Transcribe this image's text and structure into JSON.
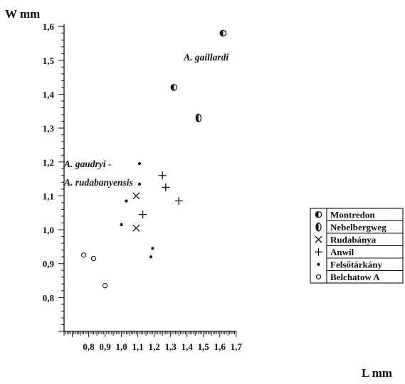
{
  "chart_data": {
    "type": "scatter",
    "xlabel": "L mm",
    "ylabel": "W mm",
    "xlim": [
      0.65,
      1.7
    ],
    "ylim": [
      0.7,
      1.6
    ],
    "x_ticks": [
      "0,8",
      "0,9",
      "1,0",
      "1,1",
      "1,2",
      "1,3",
      "1,4",
      "1,5",
      "1,6",
      "1,7"
    ],
    "y_ticks": [
      "0,8",
      "0,9",
      "1,0",
      "1,1",
      "1,2",
      "1,3",
      "1,4",
      "1,5",
      "1,6"
    ],
    "grid": false,
    "legend_position": "right",
    "annotations": [
      {
        "text": "A. gaillardi",
        "x": 1.38,
        "y": 1.5
      },
      {
        "text": "A. gaudryi -",
        "x": 0.65,
        "y": 1.185
      },
      {
        "text": "A. rudabanyensis",
        "x": 0.65,
        "y": 1.13
      }
    ],
    "series": [
      {
        "name": "Montredon",
        "marker": "half-filled-circle",
        "points": [
          {
            "x": 1.32,
            "y": 1.42
          },
          {
            "x": 1.62,
            "y": 1.58
          }
        ]
      },
      {
        "name": "Nebelbergweg",
        "marker": "half-filled-oval",
        "points": [
          {
            "x": 1.47,
            "y": 1.33
          }
        ]
      },
      {
        "name": "Rudabánya",
        "marker": "x",
        "points": [
          {
            "x": 1.09,
            "y": 1.1
          },
          {
            "x": 1.09,
            "y": 1.005
          }
        ]
      },
      {
        "name": "Anwil",
        "marker": "plus",
        "points": [
          {
            "x": 1.25,
            "y": 1.16
          },
          {
            "x": 1.27,
            "y": 1.125
          },
          {
            "x": 1.35,
            "y": 1.085
          },
          {
            "x": 1.13,
            "y": 1.045
          }
        ]
      },
      {
        "name": "Felsőtárkány",
        "marker": "dot",
        "points": [
          {
            "x": 1.11,
            "y": 1.195
          },
          {
            "x": 1.11,
            "y": 1.135
          },
          {
            "x": 1.03,
            "y": 1.085
          },
          {
            "x": 1.0,
            "y": 1.015
          },
          {
            "x": 1.19,
            "y": 0.945
          },
          {
            "x": 1.18,
            "y": 0.92
          }
        ]
      },
      {
        "name": "Belchatow A",
        "marker": "open-circle",
        "points": [
          {
            "x": 0.77,
            "y": 0.925
          },
          {
            "x": 0.83,
            "y": 0.915
          },
          {
            "x": 0.9,
            "y": 0.835
          }
        ]
      }
    ]
  }
}
